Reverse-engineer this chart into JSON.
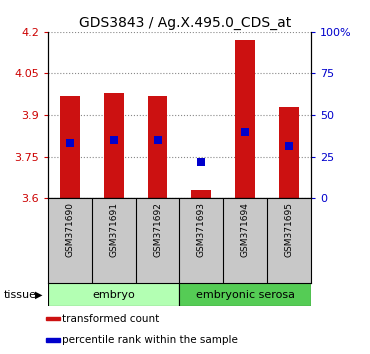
{
  "title": "GDS3843 / Ag.X.495.0_CDS_at",
  "samples": [
    "GSM371690",
    "GSM371691",
    "GSM371692",
    "GSM371693",
    "GSM371694",
    "GSM371695"
  ],
  "transformed_counts": [
    3.97,
    3.98,
    3.97,
    3.63,
    4.17,
    3.93
  ],
  "percentile_ranks": [
    3.8,
    3.81,
    3.81,
    3.73,
    3.84,
    3.79
  ],
  "ymin": 3.6,
  "ymax": 4.2,
  "yticks_left": [
    3.6,
    3.75,
    3.9,
    4.05,
    4.2
  ],
  "yticks_right_vals": [
    0,
    25,
    50,
    75,
    100
  ],
  "yticks_right_labels": [
    "0",
    "25",
    "50",
    "75",
    "100%"
  ],
  "groups": [
    {
      "label": "embryo",
      "start": 0,
      "end": 3,
      "color": "#b3ffb3"
    },
    {
      "label": "embryonic serosa",
      "start": 3,
      "end": 6,
      "color": "#55cc55"
    }
  ],
  "bar_color": "#cc1111",
  "dot_color": "#0000cc",
  "bar_width": 0.45,
  "dot_size": 40,
  "legend_items": [
    {
      "label": "transformed count",
      "color": "#cc1111"
    },
    {
      "label": "percentile rank within the sample",
      "color": "#0000cc"
    }
  ],
  "tissue_label": "tissue",
  "left_axis_color": "#cc0000",
  "right_axis_color": "#0000cc",
  "sample_bg_color": "#c8c8c8",
  "fig_width": 3.7,
  "fig_height": 3.54,
  "dpi": 100
}
